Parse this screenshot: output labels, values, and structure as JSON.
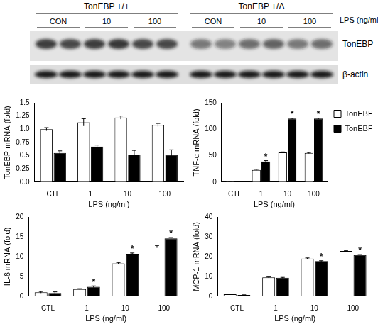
{
  "blot": {
    "groups": [
      "TonEBP +/+",
      "TonEBP +/Δ"
    ],
    "lane_labels": [
      "CON",
      "10",
      "100"
    ],
    "treatment_label": "LPS (ng/ml)",
    "rows": [
      "TonEBP",
      "β-actin"
    ]
  },
  "chart_data": [
    {
      "type": "bar",
      "y_label": "TonEBP mRNA (fold)",
      "x_label": "LPS (ng/ml)",
      "categories": [
        "CTL",
        "1",
        "10",
        "100"
      ],
      "ylim": [
        0,
        1.5
      ],
      "yticks": [
        {
          "value": 0,
          "label": "0.0"
        },
        0.25,
        0.5,
        0.75,
        {
          "value": 1,
          "label": "1.0"
        },
        1.25,
        1.5
      ],
      "grid": false,
      "series": [
        {
          "name": "TonEBP +/+",
          "color": "#ffffff",
          "values": [
            1.0,
            1.13,
            1.22,
            1.08
          ],
          "errors": [
            0.03,
            0.07,
            0.03,
            0.03
          ]
        },
        {
          "name": "TonEBP +/Δ",
          "color": "#000000",
          "values": [
            0.55,
            0.67,
            0.52,
            0.51
          ],
          "errors": [
            0.04,
            0.03,
            0.08,
            0.1
          ]
        }
      ]
    },
    {
      "type": "bar",
      "y_label": "TNF-α mRNA (fold)",
      "x_label": "LPS (ng/ml)",
      "categories": [
        "CTL",
        "1",
        "10",
        "100"
      ],
      "ylim": [
        0,
        150
      ],
      "yticks": [
        0,
        50,
        100,
        150
      ],
      "grid": false,
      "legend": "right",
      "series": [
        {
          "name": "TonEBP +/+",
          "color": "#ffffff",
          "values": [
            1,
            23,
            56,
            55
          ],
          "errors": [
            0.3,
            1,
            1,
            1
          ]
        },
        {
          "name": "TonEBP +/Δ",
          "color": "#000000",
          "values": [
            1,
            39,
            120,
            120
          ],
          "errors": [
            0.3,
            1.5,
            1,
            1
          ],
          "significance": [
            null,
            "*",
            "*",
            "*"
          ]
        }
      ]
    },
    {
      "type": "bar",
      "y_label": "IL-6 mRNA (fold)",
      "x_label": "LPS (ng/ml)",
      "categories": [
        "CTL",
        "1",
        "10",
        "100"
      ],
      "ylim": [
        0,
        20
      ],
      "yticks": [
        0,
        5,
        10,
        15,
        20
      ],
      "grid": false,
      "series": [
        {
          "name": "TonEBP +/+",
          "color": "#ffffff",
          "values": [
            1.0,
            1.8,
            8.3,
            12.5
          ],
          "errors": [
            0.2,
            0.1,
            0.2,
            0.3
          ]
        },
        {
          "name": "TonEBP +/Δ",
          "color": "#000000",
          "values": [
            0.8,
            2.4,
            10.7,
            14.6
          ],
          "errors": [
            0.3,
            0.2,
            0.2,
            0.2
          ],
          "significance": [
            null,
            "*",
            "*",
            "*"
          ]
        }
      ]
    },
    {
      "type": "bar",
      "y_label": "MCP-1 mRNA (fold)",
      "x_label": "LPS (ng/ml)",
      "categories": [
        "CTL",
        "1",
        "10",
        "100"
      ],
      "ylim": [
        0,
        40
      ],
      "yticks": [
        0,
        10,
        20,
        30,
        40
      ],
      "grid": false,
      "series": [
        {
          "name": "TonEBP +/+",
          "color": "#ffffff",
          "values": [
            1.0,
            9.5,
            19,
            22.8
          ],
          "errors": [
            0.1,
            0.2,
            0.3,
            0.3
          ]
        },
        {
          "name": "TonEBP +/Δ",
          "color": "#000000",
          "values": [
            0.6,
            9.3,
            17.7,
            20.8
          ],
          "errors": [
            0.1,
            0.2,
            0.2,
            0.2
          ],
          "significance": [
            null,
            null,
            "*",
            "*"
          ]
        }
      ]
    }
  ]
}
